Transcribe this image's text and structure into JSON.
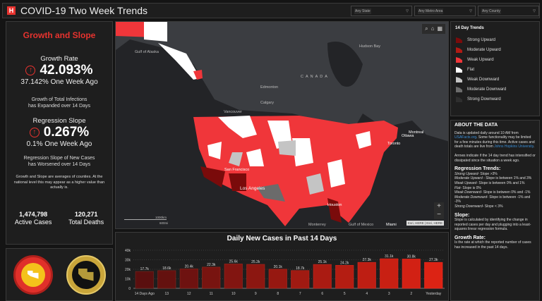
{
  "header": {
    "title": "COVID-19 Two Week Trends",
    "logo_glyph": "H",
    "filters": [
      {
        "value": "Any State"
      },
      {
        "value": "Any Metro Area"
      },
      {
        "value": "Any County"
      }
    ]
  },
  "left": {
    "heading": "Growth and Slope",
    "growth": {
      "label": "Growth Rate",
      "value": "42.093%",
      "week_ago": "37.142% One Week Ago",
      "note1": "Growth of Total Infections",
      "note2": "has Expanded over 14 Days"
    },
    "slope": {
      "label": "Regression Slope",
      "value": "0.267%",
      "week_ago": "0.1% One Week Ago",
      "note1": "Regression Slope of New Cases",
      "note2": "has Worsened over 14 Days"
    },
    "footnote": "Growth and Slope are averages of counties.  At the national level this may appear as a higher value than actually is.",
    "active": {
      "value": "1,474,798",
      "label": "Active Cases"
    },
    "deaths": {
      "value": "120,271",
      "label": "Total Deaths"
    }
  },
  "logos": [
    "U.S. Army Corps of Engineers Galveston District",
    "U.S. Army Corps of Engineers Southwestern Division"
  ],
  "map": {
    "labels": {
      "gulf_alaska": "Gulf of Alaska",
      "hudson": "Hudson Bay",
      "canada": "CANADA",
      "edmonton": "Edmonton",
      "calgary": "Calgary",
      "vancouver": "Vancouver",
      "sf": "San Francisco",
      "la": "Los Angeles",
      "montreal": "Montreal",
      "ottawa": "Ottawa",
      "toronto": "Toronto",
      "houston": "Houston",
      "monterrey": "Monterrey",
      "miami": "Miami",
      "gulf_mexico": "Gulf of Mexico"
    },
    "scale_km": "1000km",
    "scale_mi": "600mi",
    "attribution": "Esri, HERE | Esri, HERE",
    "zoom_in": "+",
    "zoom_out": "−"
  },
  "chart_data": {
    "type": "bar",
    "title": "Daily New Cases in Past 14 Days",
    "categories": [
      "14 Days Ago",
      "13",
      "12",
      "11",
      "10",
      "9",
      "8",
      "7",
      "6",
      "5",
      "4",
      "3",
      "2",
      "Yesterday"
    ],
    "values": [
      17700,
      18600,
      20400,
      22300,
      25600,
      25200,
      20100,
      18700,
      25100,
      24200,
      27300,
      31100,
      30800,
      27300
    ],
    "data_labels": [
      "17.7k",
      "18.6k",
      "20.4k",
      "22.3k",
      "25.6k",
      "25.2k",
      "20.1k",
      "18.7k",
      "25.1k",
      "24.2k",
      "27.3k",
      "31.1k",
      "30.8k",
      "27.3k"
    ],
    "yticks": [
      "0",
      "10k",
      "20k",
      "30k",
      "40k"
    ],
    "ylim": [
      0,
      40000
    ],
    "grid": true
  },
  "legend": {
    "title": "14 Day Trends",
    "items": [
      {
        "label": "Strong Upward",
        "color": "#7a0b0b"
      },
      {
        "label": "Moderate Upward",
        "color": "#b01a14"
      },
      {
        "label": "Weak Upward",
        "color": "#f0363a"
      },
      {
        "label": "Flat",
        "color": "#ffffff"
      },
      {
        "label": "Weak Downward",
        "color": "#c4c4c4"
      },
      {
        "label": "Moderate Downward",
        "color": "#6b6b6b"
      },
      {
        "label": "Strong Downward",
        "color": "#2e2e2e"
      }
    ]
  },
  "about": {
    "title": "ABOUT THE DATA",
    "p1a": "Data is updated daily around 10 AM from ",
    "p1link": "USAFacts.org",
    "p1b": ". Some functionality may be limited for a few minutes during this time. Active cases and death totals are live from ",
    "p1link2": "Johns Hopkins University",
    "p1c": ".",
    "p2": "Arrows indicate if the 14 day trend has intensified or dissipated since the situation a week ago.",
    "trends_title": "Regression Trends:",
    "trends": [
      {
        "k": "Strong Upward",
        "v": "- Slope >3%"
      },
      {
        "k": "Moderate Upward",
        "v": " - Slope is between 1% and 3%"
      },
      {
        "k": "Weak Upward",
        "v": "- Slope is between 0% and 1%"
      },
      {
        "k": "Flat",
        "v": "- Slope is 0%"
      },
      {
        "k": "Weak Downward",
        "v": "- Slope is between 0% and -1%"
      },
      {
        "k": "Moderate Downward",
        "v": "- Slope is between -1% and -3%"
      },
      {
        "k": "Strong Downward",
        "v": "- Slope < 3%"
      }
    ],
    "slope_title": "Slope:",
    "slope_text": "Slope is calculated by identifying the change in reported cases per day and plugging into a least-squares linear regression formula.",
    "growth_title": "Growth Rate:",
    "growth_text": "Is the rate at which the reported number of cases has increased in the past 14 days."
  }
}
